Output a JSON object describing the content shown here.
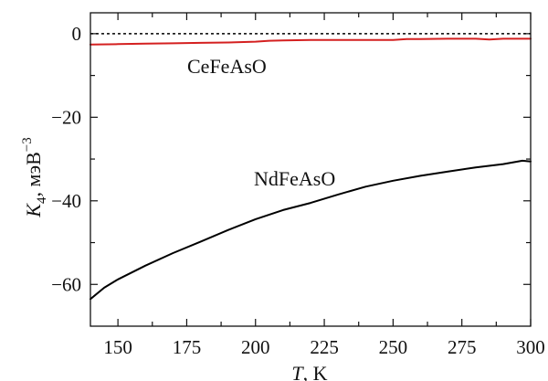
{
  "chart_data": {
    "type": "line",
    "xlabel": {
      "var": "T",
      "rest": ", K"
    },
    "ylabel": {
      "var": "K",
      "sub": "4",
      "rest": ", мэВ",
      "sup": "−3"
    },
    "xlim": [
      140,
      300
    ],
    "ylim": [
      -70,
      5
    ],
    "x_ticks": [
      150,
      175,
      200,
      225,
      250,
      275,
      300
    ],
    "x_minor_ticks": [
      162.5,
      187.5,
      212.5,
      237.5,
      262.5,
      287.5
    ],
    "y_ticks": [
      0,
      -20,
      -40,
      -60
    ],
    "y_minor_ticks": [
      -10,
      -30,
      -50
    ],
    "x_tick_labels": [
      "150",
      "175",
      "200",
      "225",
      "250",
      "275",
      "300"
    ],
    "y_tick_labels": [
      "0",
      "−20",
      "−40",
      "−60"
    ],
    "reference_line": {
      "y": 0,
      "style": "dashed",
      "color": "#000000"
    },
    "series": [
      {
        "name": "CeFeAsO",
        "color": "#d42020",
        "x": [
          140,
          150,
          160,
          170,
          180,
          190,
          200,
          205,
          210,
          220,
          230,
          240,
          250,
          255,
          260,
          270,
          280,
          285,
          290,
          300
        ],
        "y": [
          -2.6,
          -2.5,
          -2.4,
          -2.3,
          -2.2,
          -2.1,
          -1.9,
          -1.7,
          -1.6,
          -1.5,
          -1.5,
          -1.5,
          -1.5,
          -1.3,
          -1.3,
          -1.2,
          -1.2,
          -1.4,
          -1.2,
          -1.2
        ]
      },
      {
        "name": "NdFeAsO",
        "color": "#000000",
        "x": [
          140,
          145,
          150,
          160,
          170,
          180,
          190,
          200,
          210,
          220,
          230,
          240,
          250,
          260,
          270,
          280,
          290,
          297,
          300
        ],
        "y": [
          -63.5,
          -60.8,
          -58.8,
          -55.5,
          -52.5,
          -49.8,
          -47.0,
          -44.4,
          -42.2,
          -40.5,
          -38.5,
          -36.6,
          -35.2,
          -34.0,
          -33.0,
          -32.0,
          -31.2,
          -30.4,
          -30.6
        ]
      }
    ]
  }
}
